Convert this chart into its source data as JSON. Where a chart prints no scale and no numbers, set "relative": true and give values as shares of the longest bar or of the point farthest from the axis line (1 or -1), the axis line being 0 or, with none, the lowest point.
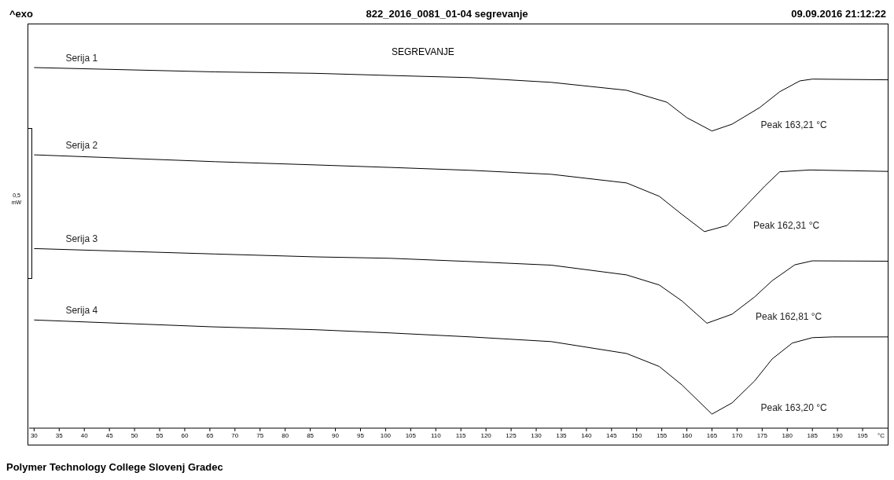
{
  "chart_data": {
    "type": "line",
    "title": "822_2016_0081_01-04 segrevanje",
    "subtitle": "SEGREVANJE",
    "xlabel": "°C",
    "relative": true,
    "tick_labels": "x",
    "marker": "none",
    "line_style": "solid",
    "xlim": [
      29,
      200
    ],
    "xticks": [
      30,
      35,
      40,
      45,
      50,
      55,
      60,
      65,
      70,
      75,
      80,
      85,
      90,
      95,
      100,
      105,
      110,
      115,
      120,
      125,
      130,
      135,
      140,
      145,
      150,
      155,
      160,
      165,
      170,
      175,
      180,
      185,
      190,
      195
    ],
    "series": [
      {
        "name": "Serija 1",
        "color": "#000000",
        "x": [
          30,
          66,
          86,
          101,
          117,
          133,
          148,
          156,
          160,
          165,
          169,
          174.5,
          178.5,
          182.5,
          185,
          200
        ],
        "values": [
          1.0,
          0.988,
          0.984,
          0.978,
          0.972,
          0.959,
          0.937,
          0.904,
          0.861,
          0.824,
          0.843,
          0.889,
          0.933,
          0.963,
          0.968,
          0.966
        ]
      },
      {
        "name": "Serija 2",
        "color": "#000000",
        "x": [
          30,
          66,
          86,
          101,
          117,
          133,
          148,
          154.5,
          159,
          163.5,
          168,
          172,
          175.5,
          178.5,
          184.5,
          200
        ],
        "values": [
          0.758,
          0.739,
          0.73,
          0.723,
          0.715,
          0.704,
          0.68,
          0.643,
          0.593,
          0.545,
          0.562,
          0.62,
          0.671,
          0.711,
          0.716,
          0.712
        ]
      },
      {
        "name": "Serija 3",
        "color": "#000000",
        "x": [
          30,
          66,
          86,
          101,
          117,
          133,
          148,
          154.5,
          159,
          164,
          169,
          173.5,
          177,
          181.5,
          185,
          200
        ],
        "values": [
          0.498,
          0.483,
          0.475,
          0.471,
          0.462,
          0.452,
          0.425,
          0.397,
          0.353,
          0.291,
          0.316,
          0.364,
          0.409,
          0.453,
          0.464,
          0.463
        ]
      },
      {
        "name": "Serija 4",
        "color": "#000000",
        "x": [
          30,
          65.5,
          86,
          101,
          117,
          133,
          148,
          154.5,
          159,
          165,
          169,
          173.5,
          177,
          181,
          185,
          189,
          200
        ],
        "values": [
          0.3,
          0.281,
          0.273,
          0.264,
          0.253,
          0.24,
          0.207,
          0.171,
          0.12,
          0.039,
          0.07,
          0.131,
          0.192,
          0.236,
          0.251,
          0.253,
          0.253
        ]
      }
    ],
    "annotations": [
      "^exo",
      "09.09.2016 21:12:22",
      "0,5 mW",
      "Polymer Technology College Slovenj Gradec",
      "Peak 163,21 °C",
      "Peak 162,31 °C",
      "Peak 162,81 °C",
      "Peak 163,20 °C"
    ]
  }
}
